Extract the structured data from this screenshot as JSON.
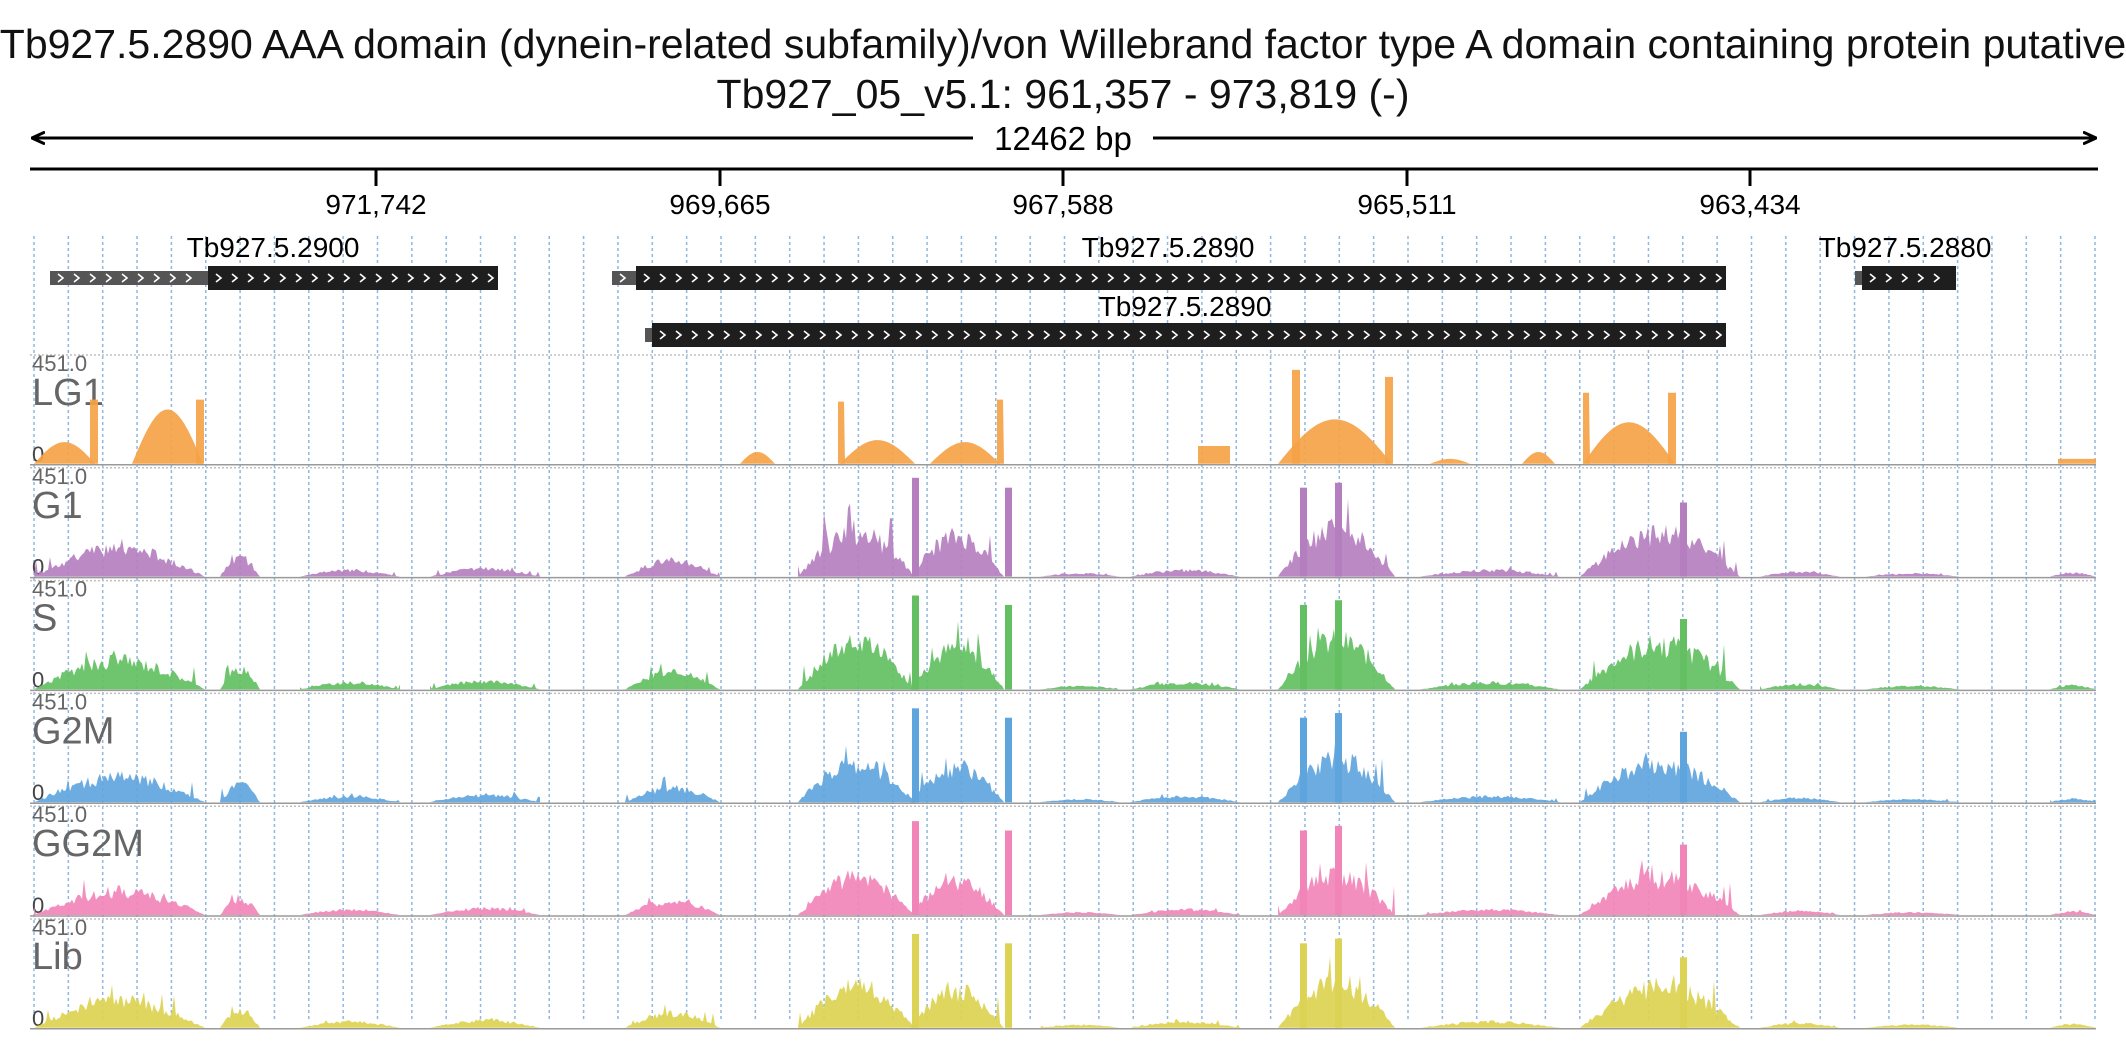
{
  "header": {
    "title": "Tb927.5.2890  AAA domain (dynein-related subfamily)/von Willebrand factor type A domain containing protein  putative",
    "locus": "Tb927_05_v5.1: 961,357 - 973,819 (-)",
    "span": "12462 bp"
  },
  "ruler": {
    "ticks": [
      {
        "label": "971,742"
      },
      {
        "label": "969,665"
      },
      {
        "label": "967,588"
      },
      {
        "label": "965,511"
      },
      {
        "label": "963,434"
      }
    ]
  },
  "genes": [
    {
      "label": "Tb927.5.2900"
    },
    {
      "label": "Tb927.5.2890"
    },
    {
      "label": "Tb927.5.2880"
    },
    {
      "label": "Tb927.5.2890"
    }
  ],
  "tracks": [
    {
      "name": "LG1",
      "max": "451.0",
      "min": "0",
      "color": "#f5a347"
    },
    {
      "name": "G1",
      "max": "451.0",
      "min": "0",
      "color": "#b57fbf"
    },
    {
      "name": "S",
      "max": "451.0",
      "min": "0",
      "color": "#63bf62"
    },
    {
      "name": "G2M",
      "max": "451.0",
      "min": "0",
      "color": "#5fa5dd"
    },
    {
      "name": "GG2M",
      "max": "451.0",
      "min": "0",
      "color": "#f285b8"
    },
    {
      "name": "Lib",
      "max": "451.0",
      "min": "0",
      "color": "#dcd253"
    }
  ]
}
